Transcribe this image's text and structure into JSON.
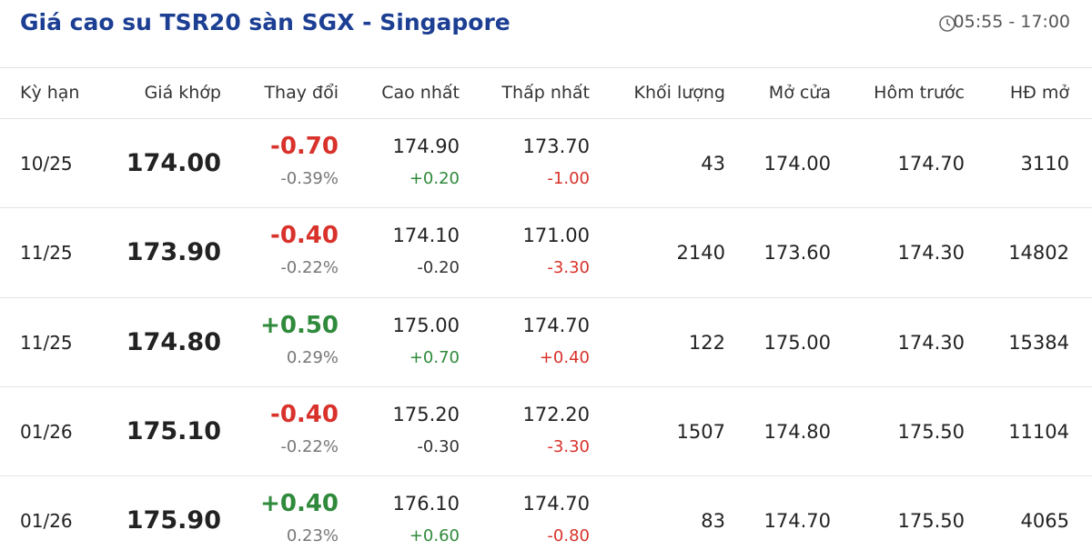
{
  "header": {
    "title": "Giá cao su TSR20 sàn SGX - Singapore",
    "time": "05:55 - 17:00"
  },
  "table": {
    "columns": [
      "Kỳ hạn",
      "Giá khớp",
      "Thay đổi",
      "Cao nhất",
      "Thấp nhất",
      "Khối lượng",
      "Mở cửa",
      "Hôm trước",
      "HĐ mở"
    ],
    "rows": [
      {
        "term": "10/25",
        "price": "174.00",
        "change": {
          "value": "-0.70",
          "percent": "-0.39%",
          "color": "red"
        },
        "high": {
          "value": "174.90",
          "diff": "+0.20",
          "color": "green"
        },
        "low": {
          "value": "173.70",
          "diff": "-1.00",
          "color": "red"
        },
        "volume": "43",
        "open": "174.00",
        "prev": "174.70",
        "oi": "3110"
      },
      {
        "term": "11/25",
        "price": "173.90",
        "change": {
          "value": "-0.40",
          "percent": "-0.22%",
          "color": "red"
        },
        "high": {
          "value": "174.10",
          "diff": "-0.20",
          "color": "dark"
        },
        "low": {
          "value": "171.00",
          "diff": "-3.30",
          "color": "red"
        },
        "volume": "2140",
        "open": "173.60",
        "prev": "174.30",
        "oi": "14802"
      },
      {
        "term": "11/25",
        "price": "174.80",
        "change": {
          "value": "+0.50",
          "percent": "0.29%",
          "color": "green"
        },
        "high": {
          "value": "175.00",
          "diff": "+0.70",
          "color": "green"
        },
        "low": {
          "value": "174.70",
          "diff": "+0.40",
          "color": "red"
        },
        "volume": "122",
        "open": "175.00",
        "prev": "174.30",
        "oi": "15384"
      },
      {
        "term": "01/26",
        "price": "175.10",
        "change": {
          "value": "-0.40",
          "percent": "-0.22%",
          "color": "red"
        },
        "high": {
          "value": "175.20",
          "diff": "-0.30",
          "color": "dark"
        },
        "low": {
          "value": "172.20",
          "diff": "-3.30",
          "color": "red"
        },
        "volume": "1507",
        "open": "174.80",
        "prev": "175.50",
        "oi": "11104"
      },
      {
        "term": "01/26",
        "price": "175.90",
        "change": {
          "value": "+0.40",
          "percent": "0.23%",
          "color": "green"
        },
        "high": {
          "value": "176.10",
          "diff": "+0.60",
          "color": "green"
        },
        "low": {
          "value": "174.70",
          "diff": "-0.80",
          "color": "red"
        },
        "volume": "83",
        "open": "174.70",
        "prev": "175.50",
        "oi": "4065"
      }
    ]
  }
}
